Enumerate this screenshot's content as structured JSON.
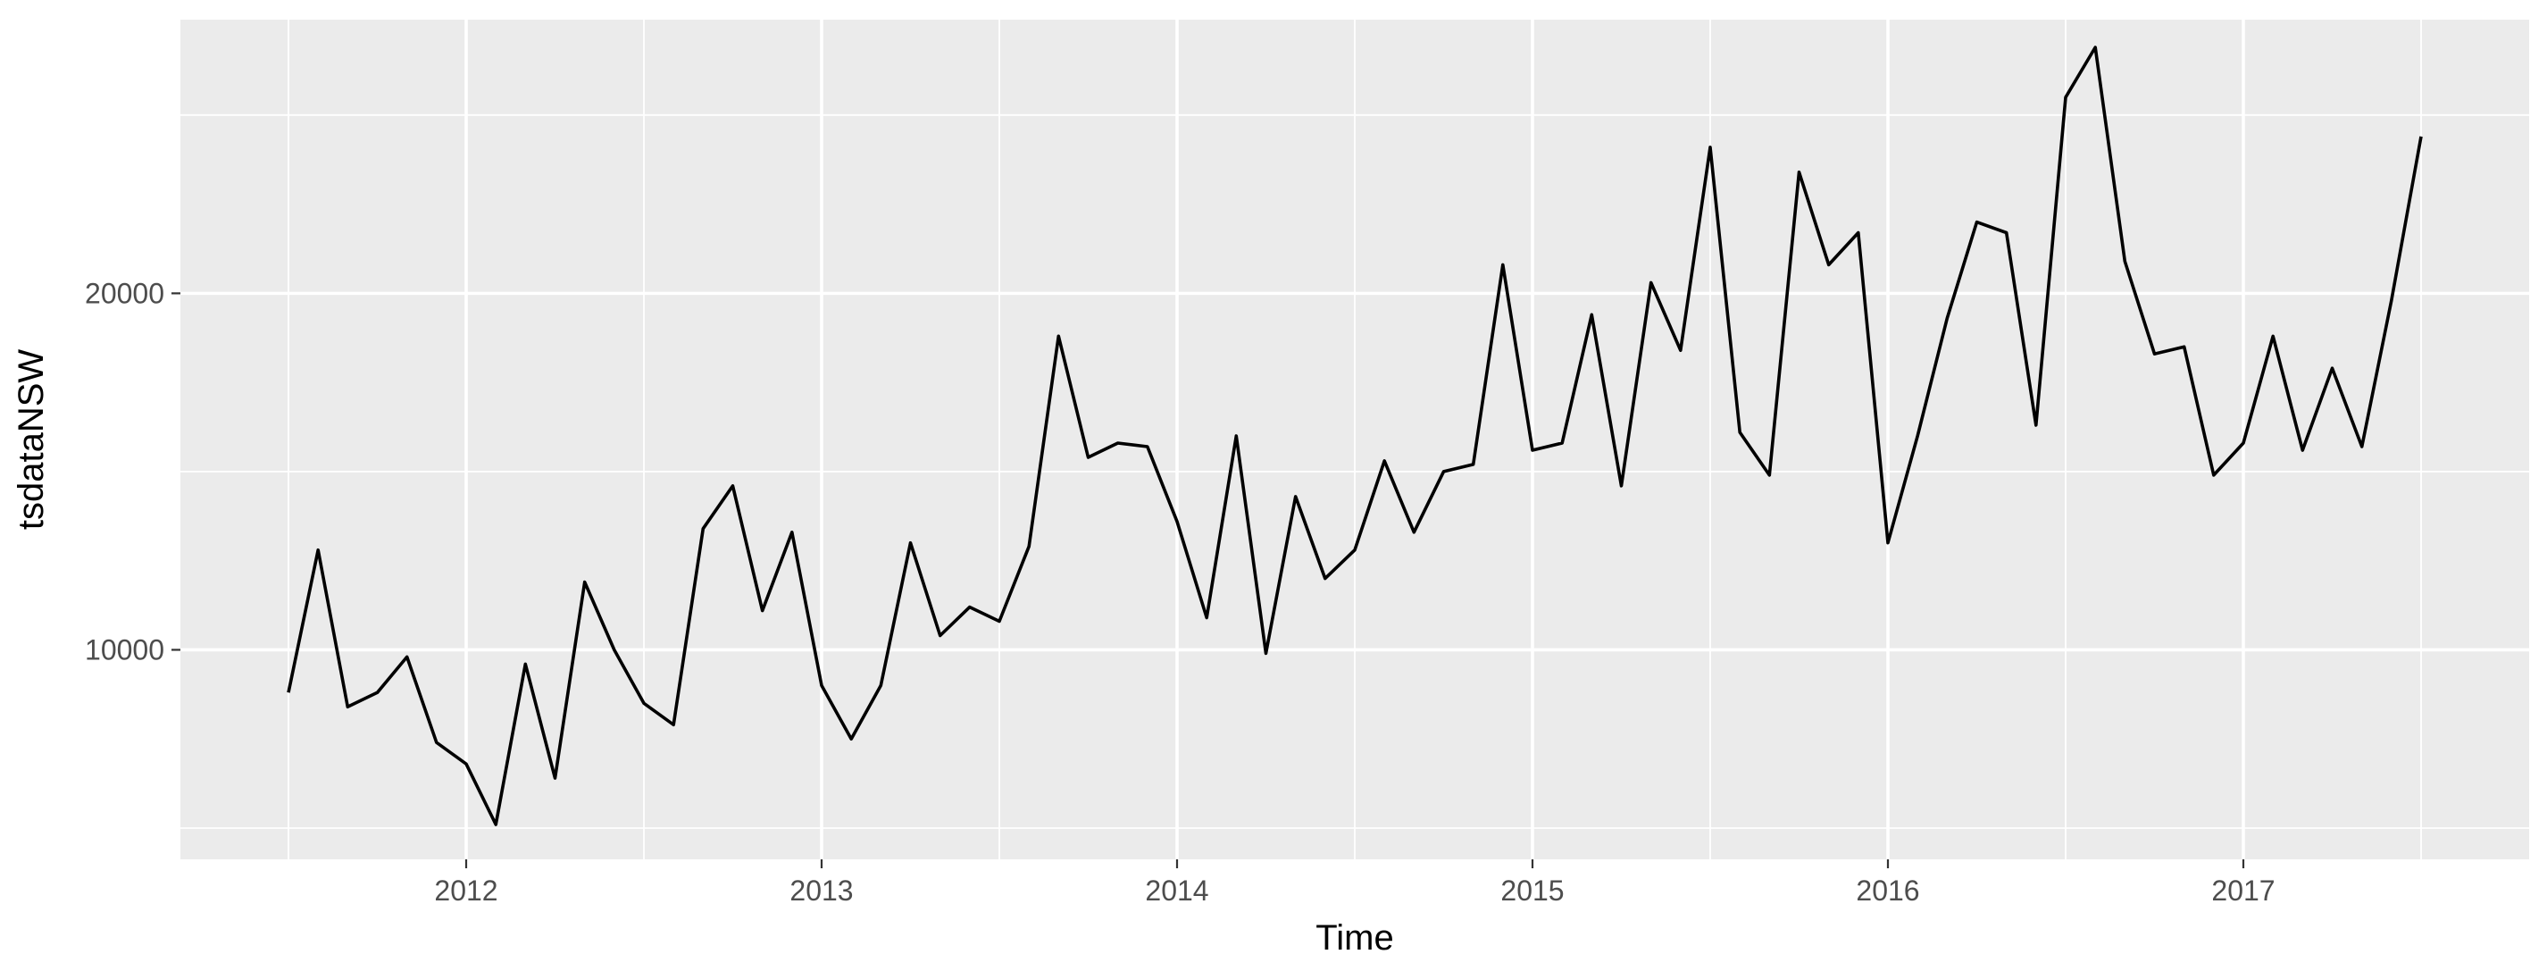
{
  "chart_data": {
    "type": "line",
    "title": "",
    "xlabel": "Time",
    "ylabel": "tsdataNSW",
    "xlim": [
      2011.5,
      2017.5
    ],
    "ylim": [
      5000,
      26800
    ],
    "x_ticks": [
      2012,
      2013,
      2014,
      2015,
      2016,
      2017
    ],
    "x_tick_labels": [
      "2012",
      "2013",
      "2014",
      "2015",
      "2016",
      "2017"
    ],
    "y_ticks": [
      10000,
      20000
    ],
    "y_tick_labels": [
      "10000",
      "20000"
    ],
    "grid": true,
    "legend": "none",
    "frequency": 12,
    "start": [
      2011,
      7
    ],
    "series": [
      {
        "color": "#000000",
        "values": [
          8800,
          12800,
          8400,
          8800,
          9800,
          7400,
          6800,
          5100,
          9600,
          6400,
          11900,
          10000,
          8500,
          7900,
          13400,
          14600,
          11100,
          13300,
          9000,
          7500,
          9000,
          13000,
          10400,
          11200,
          10800,
          12900,
          18800,
          15400,
          15800,
          15700,
          13600,
          10900,
          16000,
          9900,
          14300,
          12000,
          12800,
          15300,
          13300,
          15000,
          15200,
          20800,
          15600,
          15800,
          19400,
          14600,
          20300,
          18400,
          24100,
          16100,
          14900,
          23400,
          20800,
          21700,
          13000,
          16000,
          19300,
          22000,
          21700,
          16300,
          25500,
          26900,
          20900,
          18300,
          18500,
          14900,
          15800,
          18800,
          15600,
          17900,
          15700,
          19800,
          24400
        ]
      }
    ]
  },
  "colors": {
    "panel_background": "#ebebeb",
    "grid": "#ffffff",
    "line": "#000000",
    "tick_label": "#4d4d4d",
    "axis_title": "#000000"
  }
}
